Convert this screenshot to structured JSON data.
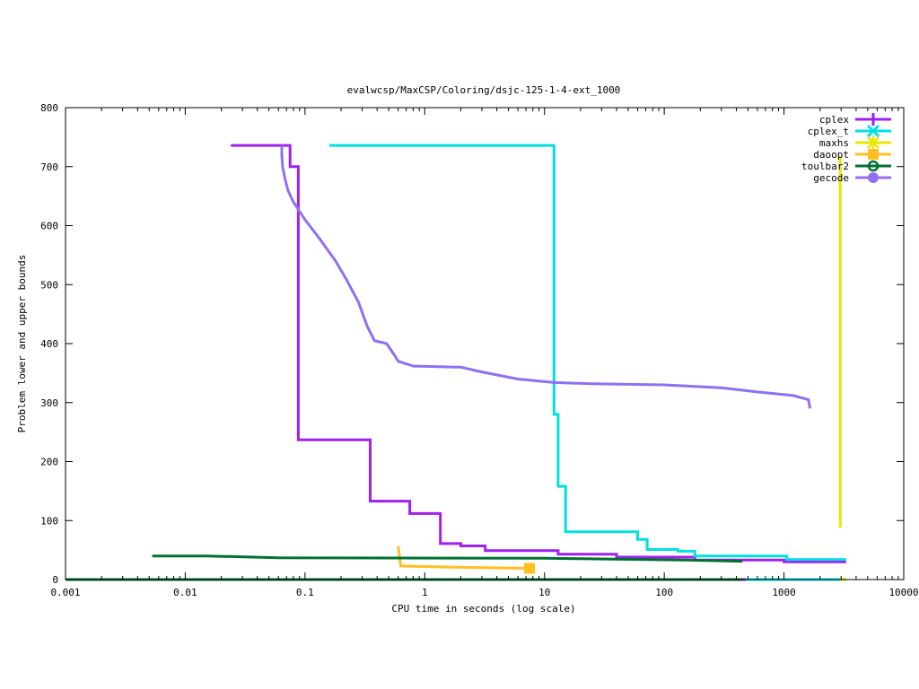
{
  "chart_data": {
    "type": "line",
    "title": "evalwcsp/MaxCSP/Coloring/dsjc-125-1-4-ext_1000",
    "xlabel": "CPU time in seconds (log scale)",
    "ylabel": "Problem lower and upper bounds",
    "xscale": "log",
    "xlim": [
      0.001,
      10000
    ],
    "ylim": [
      0,
      800
    ],
    "xticks": [
      {
        "value": 0.001,
        "label": "0.001"
      },
      {
        "value": 0.01,
        "label": "0.01"
      },
      {
        "value": 0.1,
        "label": "0.1"
      },
      {
        "value": 1,
        "label": "1"
      },
      {
        "value": 10,
        "label": "10"
      },
      {
        "value": 100,
        "label": "100"
      },
      {
        "value": 1000,
        "label": "1000"
      },
      {
        "value": 10000,
        "label": "10000"
      }
    ],
    "yticks": [
      {
        "value": 0,
        "label": "0"
      },
      {
        "value": 100,
        "label": "100"
      },
      {
        "value": 200,
        "label": "200"
      },
      {
        "value": 300,
        "label": "300"
      },
      {
        "value": 400,
        "label": "400"
      },
      {
        "value": 500,
        "label": "500"
      },
      {
        "value": 600,
        "label": "600"
      },
      {
        "value": 700,
        "label": "700"
      },
      {
        "value": 800,
        "label": "800"
      }
    ],
    "legend_position": "top-right",
    "grid": false,
    "series": [
      {
        "name": "cplex",
        "color": "#a020f0",
        "marker": "plus",
        "upper": [
          [
            0.024,
            736
          ],
          [
            0.075,
            736
          ],
          [
            0.075,
            700
          ],
          [
            0.088,
            700
          ],
          [
            0.088,
            237
          ],
          [
            0.35,
            237
          ],
          [
            0.35,
            133
          ],
          [
            0.75,
            133
          ],
          [
            0.75,
            112
          ],
          [
            1.35,
            112
          ],
          [
            1.35,
            61
          ],
          [
            2,
            61
          ],
          [
            2,
            57
          ],
          [
            3.2,
            57
          ],
          [
            3.2,
            49
          ],
          [
            13,
            49
          ],
          [
            13,
            43
          ],
          [
            40,
            43
          ],
          [
            40,
            38
          ],
          [
            180,
            38
          ],
          [
            180,
            33
          ],
          [
            1000,
            33
          ],
          [
            1000,
            30
          ],
          [
            3300,
            30
          ]
        ],
        "lower": [
          [
            300,
            0
          ],
          [
            3300,
            0
          ]
        ]
      },
      {
        "name": "cplex_t",
        "color": "#00e0e0",
        "marker": "x",
        "upper": [
          [
            0.16,
            736
          ],
          [
            12,
            736
          ],
          [
            12,
            280
          ],
          [
            13,
            280
          ],
          [
            13,
            158
          ],
          [
            15,
            158
          ],
          [
            15,
            81
          ],
          [
            60,
            81
          ],
          [
            60,
            68
          ],
          [
            72,
            68
          ],
          [
            72,
            51
          ],
          [
            130,
            51
          ],
          [
            130,
            48
          ],
          [
            180,
            48
          ],
          [
            180,
            40
          ],
          [
            1050,
            40
          ],
          [
            1050,
            34
          ],
          [
            3300,
            34
          ]
        ],
        "lower": [
          [
            480,
            0
          ],
          [
            3300,
            0
          ]
        ]
      },
      {
        "name": "maxhs",
        "color": "#e8e800",
        "marker": "star",
        "upper": [
          [
            2950,
            718
          ],
          [
            2950,
            88
          ]
        ],
        "lower": [
          [
            2950,
            0
          ],
          [
            3300,
            0
          ]
        ]
      },
      {
        "name": "daoopt",
        "color": "#ffc020",
        "marker": "square",
        "upper": [
          [
            0.6,
            57
          ],
          [
            0.63,
            23
          ],
          [
            1.8,
            21
          ],
          [
            7.5,
            19
          ]
        ],
        "lower": [
          [
            0.001,
            0
          ],
          [
            7.5,
            0
          ]
        ]
      },
      {
        "name": "toulbar2",
        "color": "#007030",
        "marker": "circle",
        "upper": [
          [
            0.0053,
            40
          ],
          [
            0.015,
            40
          ],
          [
            0.06,
            37
          ],
          [
            10,
            36
          ],
          [
            150,
            33
          ],
          [
            450,
            31
          ]
        ],
        "lower": [
          [
            0.001,
            0
          ],
          [
            450,
            0
          ]
        ]
      },
      {
        "name": "gecode",
        "color": "#9070f0",
        "marker": "dot",
        "upper": [
          [
            0.064,
            736
          ],
          [
            0.064,
            720
          ],
          [
            0.065,
            700
          ],
          [
            0.068,
            680
          ],
          [
            0.072,
            660
          ],
          [
            0.08,
            640
          ],
          [
            0.1,
            610
          ],
          [
            0.13,
            580
          ],
          [
            0.18,
            540
          ],
          [
            0.22,
            510
          ],
          [
            0.28,
            470
          ],
          [
            0.33,
            430
          ],
          [
            0.38,
            405
          ],
          [
            0.48,
            400
          ],
          [
            0.56,
            380
          ],
          [
            0.6,
            370
          ],
          [
            0.8,
            362
          ],
          [
            2,
            360
          ],
          [
            3,
            352
          ],
          [
            6,
            340
          ],
          [
            12,
            334
          ],
          [
            25,
            332
          ],
          [
            100,
            330
          ],
          [
            300,
            325
          ],
          [
            600,
            318
          ],
          [
            1200,
            312
          ],
          [
            1600,
            305
          ],
          [
            1650,
            290
          ]
        ],
        "lower": []
      }
    ]
  }
}
